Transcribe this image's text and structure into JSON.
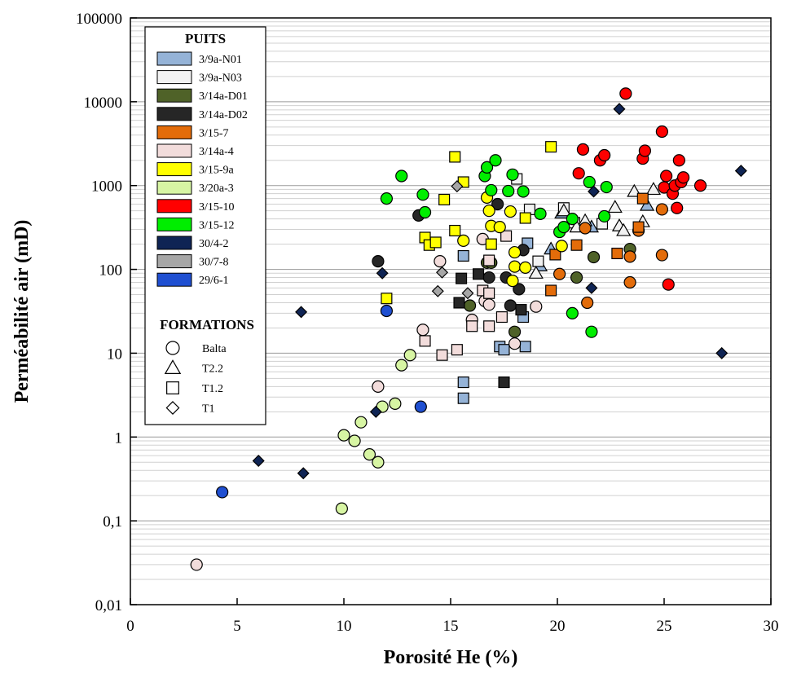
{
  "chart_data": {
    "type": "scatter",
    "xlabel": "Porosité He (%)",
    "ylabel": "Perméabilité air (mD)",
    "xlim": [
      0,
      30
    ],
    "ylim": [
      0.01,
      100000
    ],
    "y_scale": "log",
    "x_ticks": [
      "0",
      "5",
      "10",
      "15",
      "20",
      "25",
      "30"
    ],
    "x_tick_values": [
      0,
      5,
      10,
      15,
      20,
      25,
      30
    ],
    "y_ticks": [
      "0,01",
      "0,1",
      "1",
      "10",
      "100",
      "1000",
      "10000",
      "100000"
    ],
    "y_tick_values": [
      0.01,
      0.1,
      1,
      10,
      100,
      1000,
      10000,
      100000
    ],
    "grid": "horizontal minor log gridlines",
    "legend": {
      "placement": "top-left",
      "wells_title": "PUITS",
      "formations_title": "FORMATIONS",
      "wells": [
        {
          "name": "3/9a-N01",
          "color": "#95b3d7"
        },
        {
          "name": "3/9a-N03",
          "color": "#f2f2f2"
        },
        {
          "name": "3/14a-D01",
          "color": "#4f6228"
        },
        {
          "name": "3/14a-D02",
          "color": "#262626"
        },
        {
          "name": "3/15-7",
          "color": "#e36c0a"
        },
        {
          "name": "3/14a-4",
          "color": "#f2dcdb"
        },
        {
          "name": "3/15-9a",
          "color": "#ffff00"
        },
        {
          "name": "3/20a-3",
          "color": "#d7f5a3"
        },
        {
          "name": "3/15-10",
          "color": "#ff0000"
        },
        {
          "name": "3/15-12",
          "color": "#00ee00"
        },
        {
          "name": "30/4-2",
          "color": "#0f2454"
        },
        {
          "name": "30/7-8",
          "color": "#a6a6a6"
        },
        {
          "name": "29/6-1",
          "color": "#1f4fd1"
        }
      ],
      "formations": [
        {
          "name": "Balta",
          "marker": "circle"
        },
        {
          "name": "T2.2",
          "marker": "triangle"
        },
        {
          "name": "T1.2",
          "marker": "square"
        },
        {
          "name": "T1",
          "marker": "diamond"
        }
      ]
    },
    "series": [
      {
        "name": "3/9a-N01",
        "color": "#95b3d7",
        "points": [
          {
            "x": 15.6,
            "y": 145,
            "m": "square"
          },
          {
            "x": 15.6,
            "y": 4.5,
            "m": "square"
          },
          {
            "x": 15.6,
            "y": 2.9,
            "m": "square"
          },
          {
            "x": 17.3,
            "y": 12,
            "m": "square"
          },
          {
            "x": 17.5,
            "y": 11,
            "m": "square"
          },
          {
            "x": 18.5,
            "y": 12,
            "m": "square"
          },
          {
            "x": 18.4,
            "y": 27,
            "m": "square"
          },
          {
            "x": 18.6,
            "y": 205,
            "m": "square"
          },
          {
            "x": 19.2,
            "y": 110,
            "m": "triangle"
          },
          {
            "x": 19.7,
            "y": 175,
            "m": "triangle"
          },
          {
            "x": 20.2,
            "y": 470,
            "m": "triangle"
          },
          {
            "x": 21.6,
            "y": 320,
            "m": "triangle"
          },
          {
            "x": 24.2,
            "y": 580,
            "m": "triangle"
          }
        ]
      },
      {
        "name": "3/9a-N03",
        "color": "#f2f2f2",
        "points": [
          {
            "x": 18.1,
            "y": 1200,
            "m": "square"
          },
          {
            "x": 20.3,
            "y": 540,
            "m": "square"
          },
          {
            "x": 20.8,
            "y": 360,
            "m": "square"
          },
          {
            "x": 22.1,
            "y": 350,
            "m": "square"
          },
          {
            "x": 18.7,
            "y": 520,
            "m": "square"
          },
          {
            "x": 19.1,
            "y": 125,
            "m": "square"
          },
          {
            "x": 19.0,
            "y": 90,
            "m": "triangle"
          },
          {
            "x": 20.3,
            "y": 500,
            "m": "triangle"
          },
          {
            "x": 21.3,
            "y": 380,
            "m": "triangle"
          },
          {
            "x": 22.7,
            "y": 550,
            "m": "triangle"
          },
          {
            "x": 22.9,
            "y": 330,
            "m": "triangle"
          },
          {
            "x": 23.1,
            "y": 290,
            "m": "triangle"
          },
          {
            "x": 23.6,
            "y": 850,
            "m": "triangle"
          },
          {
            "x": 24.0,
            "y": 370,
            "m": "triangle"
          },
          {
            "x": 24.5,
            "y": 900,
            "m": "triangle"
          },
          {
            "x": 20.9,
            "y": 320,
            "m": "triangle"
          }
        ]
      },
      {
        "name": "3/14a-D01",
        "color": "#4f6228",
        "points": [
          {
            "x": 15.9,
            "y": 37,
            "m": "circle"
          },
          {
            "x": 16.7,
            "y": 120,
            "m": "circle"
          },
          {
            "x": 16.9,
            "y": 120,
            "m": "circle"
          },
          {
            "x": 18.0,
            "y": 18,
            "m": "circle"
          },
          {
            "x": 20.9,
            "y": 80,
            "m": "circle"
          },
          {
            "x": 21.7,
            "y": 140,
            "m": "circle"
          },
          {
            "x": 23.4,
            "y": 175,
            "m": "circle"
          }
        ]
      },
      {
        "name": "3/14a-D02",
        "color": "#262626",
        "points": [
          {
            "x": 11.6,
            "y": 125,
            "m": "circle"
          },
          {
            "x": 13.5,
            "y": 440,
            "m": "circle"
          },
          {
            "x": 16.8,
            "y": 80,
            "m": "circle"
          },
          {
            "x": 17.2,
            "y": 600,
            "m": "circle"
          },
          {
            "x": 17.6,
            "y": 80,
            "m": "circle"
          },
          {
            "x": 17.8,
            "y": 37,
            "m": "circle"
          },
          {
            "x": 18.2,
            "y": 58,
            "m": "circle"
          },
          {
            "x": 18.4,
            "y": 170,
            "m": "circle"
          },
          {
            "x": 15.4,
            "y": 40,
            "m": "square"
          },
          {
            "x": 15.5,
            "y": 78,
            "m": "square"
          },
          {
            "x": 16.3,
            "y": 88,
            "m": "square"
          },
          {
            "x": 18.3,
            "y": 33,
            "m": "square"
          },
          {
            "x": 17.5,
            "y": 4.5,
            "m": "square"
          }
        ]
      },
      {
        "name": "3/15-7",
        "color": "#e36c0a",
        "points": [
          {
            "x": 20.1,
            "y": 88,
            "m": "circle"
          },
          {
            "x": 21.4,
            "y": 40,
            "m": "circle"
          },
          {
            "x": 23.4,
            "y": 70,
            "m": "circle"
          },
          {
            "x": 23.4,
            "y": 142,
            "m": "circle"
          },
          {
            "x": 24.9,
            "y": 148,
            "m": "circle"
          },
          {
            "x": 23.8,
            "y": 290,
            "m": "circle"
          },
          {
            "x": 24.9,
            "y": 520,
            "m": "circle"
          },
          {
            "x": 21.3,
            "y": 310,
            "m": "circle"
          },
          {
            "x": 19.7,
            "y": 56,
            "m": "square"
          },
          {
            "x": 20.9,
            "y": 195,
            "m": "square"
          },
          {
            "x": 22.8,
            "y": 155,
            "m": "square"
          },
          {
            "x": 23.8,
            "y": 320,
            "m": "square"
          },
          {
            "x": 24.0,
            "y": 700,
            "m": "square"
          },
          {
            "x": 19.9,
            "y": 150,
            "m": "square"
          }
        ]
      },
      {
        "name": "3/14a-4",
        "color": "#f2dcdb",
        "points": [
          {
            "x": 3.1,
            "y": 0.03,
            "m": "circle"
          },
          {
            "x": 11.6,
            "y": 4.0,
            "m": "circle"
          },
          {
            "x": 13.7,
            "y": 19,
            "m": "circle"
          },
          {
            "x": 14.5,
            "y": 125,
            "m": "circle"
          },
          {
            "x": 16.0,
            "y": 25,
            "m": "circle"
          },
          {
            "x": 16.6,
            "y": 42,
            "m": "circle"
          },
          {
            "x": 16.8,
            "y": 38,
            "m": "circle"
          },
          {
            "x": 18.0,
            "y": 13,
            "m": "circle"
          },
          {
            "x": 19.0,
            "y": 36,
            "m": "circle"
          },
          {
            "x": 16.5,
            "y": 230,
            "m": "circle"
          },
          {
            "x": 13.8,
            "y": 14,
            "m": "square"
          },
          {
            "x": 14.6,
            "y": 9.5,
            "m": "square"
          },
          {
            "x": 15.3,
            "y": 11,
            "m": "square"
          },
          {
            "x": 16.0,
            "y": 21,
            "m": "square"
          },
          {
            "x": 16.5,
            "y": 56,
            "m": "square"
          },
          {
            "x": 16.8,
            "y": 52,
            "m": "square"
          },
          {
            "x": 16.8,
            "y": 21,
            "m": "square"
          },
          {
            "x": 17.4,
            "y": 27,
            "m": "square"
          },
          {
            "x": 17.6,
            "y": 250,
            "m": "square"
          },
          {
            "x": 16.8,
            "y": 128,
            "m": "square"
          }
        ]
      },
      {
        "name": "3/15-9a",
        "color": "#ffff00",
        "points": [
          {
            "x": 12.0,
            "y": 45,
            "m": "square"
          },
          {
            "x": 13.8,
            "y": 240,
            "m": "square"
          },
          {
            "x": 14.0,
            "y": 195,
            "m": "square"
          },
          {
            "x": 14.3,
            "y": 210,
            "m": "square"
          },
          {
            "x": 14.7,
            "y": 680,
            "m": "square"
          },
          {
            "x": 15.2,
            "y": 2200,
            "m": "square"
          },
          {
            "x": 15.2,
            "y": 290,
            "m": "square"
          },
          {
            "x": 15.6,
            "y": 1100,
            "m": "square"
          },
          {
            "x": 16.9,
            "y": 200,
            "m": "square"
          },
          {
            "x": 18.5,
            "y": 410,
            "m": "square"
          },
          {
            "x": 19.7,
            "y": 2900,
            "m": "square"
          },
          {
            "x": 15.6,
            "y": 220,
            "m": "circle"
          },
          {
            "x": 16.7,
            "y": 720,
            "m": "circle"
          },
          {
            "x": 16.8,
            "y": 500,
            "m": "circle"
          },
          {
            "x": 16.9,
            "y": 330,
            "m": "circle"
          },
          {
            "x": 17.3,
            "y": 320,
            "m": "circle"
          },
          {
            "x": 17.8,
            "y": 490,
            "m": "circle"
          },
          {
            "x": 18.0,
            "y": 160,
            "m": "circle"
          },
          {
            "x": 18.0,
            "y": 108,
            "m": "circle"
          },
          {
            "x": 18.5,
            "y": 105,
            "m": "circle"
          },
          {
            "x": 17.9,
            "y": 73,
            "m": "circle"
          },
          {
            "x": 20.2,
            "y": 190,
            "m": "circle"
          }
        ]
      },
      {
        "name": "3/20a-3",
        "color": "#d7f5a3",
        "points": [
          {
            "x": 9.9,
            "y": 0.14,
            "m": "circle"
          },
          {
            "x": 10.0,
            "y": 1.05,
            "m": "circle"
          },
          {
            "x": 10.5,
            "y": 0.9,
            "m": "circle"
          },
          {
            "x": 10.8,
            "y": 1.5,
            "m": "circle"
          },
          {
            "x": 11.2,
            "y": 0.62,
            "m": "circle"
          },
          {
            "x": 11.6,
            "y": 0.5,
            "m": "circle"
          },
          {
            "x": 11.8,
            "y": 2.3,
            "m": "circle"
          },
          {
            "x": 12.4,
            "y": 2.5,
            "m": "circle"
          },
          {
            "x": 12.7,
            "y": 7.2,
            "m": "circle"
          },
          {
            "x": 13.1,
            "y": 9.5,
            "m": "circle"
          }
        ]
      },
      {
        "name": "3/15-10",
        "color": "#ff0000",
        "points": [
          {
            "x": 21.0,
            "y": 1400,
            "m": "circle"
          },
          {
            "x": 21.2,
            "y": 2700,
            "m": "circle"
          },
          {
            "x": 22.0,
            "y": 2000,
            "m": "circle"
          },
          {
            "x": 22.2,
            "y": 2300,
            "m": "circle"
          },
          {
            "x": 23.2,
            "y": 12500,
            "m": "circle"
          },
          {
            "x": 24.0,
            "y": 2100,
            "m": "circle"
          },
          {
            "x": 24.1,
            "y": 2600,
            "m": "circle"
          },
          {
            "x": 24.9,
            "y": 4400,
            "m": "circle"
          },
          {
            "x": 25.0,
            "y": 950,
            "m": "circle"
          },
          {
            "x": 25.1,
            "y": 1300,
            "m": "circle"
          },
          {
            "x": 25.4,
            "y": 800,
            "m": "circle"
          },
          {
            "x": 25.5,
            "y": 1000,
            "m": "circle"
          },
          {
            "x": 25.7,
            "y": 2000,
            "m": "circle"
          },
          {
            "x": 25.8,
            "y": 1100,
            "m": "circle"
          },
          {
            "x": 25.9,
            "y": 1250,
            "m": "circle"
          },
          {
            "x": 26.7,
            "y": 1000,
            "m": "circle"
          },
          {
            "x": 25.6,
            "y": 540,
            "m": "circle"
          },
          {
            "x": 25.2,
            "y": 66,
            "m": "circle"
          }
        ]
      },
      {
        "name": "3/15-12",
        "color": "#00ee00",
        "points": [
          {
            "x": 12.0,
            "y": 700,
            "m": "circle"
          },
          {
            "x": 12.7,
            "y": 1300,
            "m": "circle"
          },
          {
            "x": 13.7,
            "y": 780,
            "m": "circle"
          },
          {
            "x": 13.8,
            "y": 480,
            "m": "circle"
          },
          {
            "x": 16.6,
            "y": 1300,
            "m": "circle"
          },
          {
            "x": 16.7,
            "y": 1650,
            "m": "circle"
          },
          {
            "x": 16.9,
            "y": 880,
            "m": "circle"
          },
          {
            "x": 17.1,
            "y": 2000,
            "m": "circle"
          },
          {
            "x": 17.7,
            "y": 860,
            "m": "circle"
          },
          {
            "x": 17.9,
            "y": 1350,
            "m": "circle"
          },
          {
            "x": 18.4,
            "y": 850,
            "m": "circle"
          },
          {
            "x": 19.2,
            "y": 460,
            "m": "circle"
          },
          {
            "x": 20.1,
            "y": 280,
            "m": "circle"
          },
          {
            "x": 20.3,
            "y": 320,
            "m": "circle"
          },
          {
            "x": 20.7,
            "y": 400,
            "m": "circle"
          },
          {
            "x": 20.7,
            "y": 30,
            "m": "circle"
          },
          {
            "x": 21.5,
            "y": 1100,
            "m": "circle"
          },
          {
            "x": 22.2,
            "y": 430,
            "m": "circle"
          },
          {
            "x": 22.3,
            "y": 960,
            "m": "circle"
          },
          {
            "x": 21.6,
            "y": 18,
            "m": "circle"
          }
        ]
      },
      {
        "name": "30/4-2",
        "color": "#0f2454",
        "points": [
          {
            "x": 6.0,
            "y": 0.52,
            "m": "diamond"
          },
          {
            "x": 8.0,
            "y": 31,
            "m": "diamond"
          },
          {
            "x": 8.1,
            "y": 0.37,
            "m": "diamond"
          },
          {
            "x": 11.5,
            "y": 2.0,
            "m": "diamond"
          },
          {
            "x": 11.8,
            "y": 90,
            "m": "diamond"
          },
          {
            "x": 21.7,
            "y": 850,
            "m": "diamond"
          },
          {
            "x": 21.6,
            "y": 60,
            "m": "diamond"
          },
          {
            "x": 22.9,
            "y": 8200,
            "m": "diamond"
          },
          {
            "x": 27.7,
            "y": 10,
            "m": "diamond"
          },
          {
            "x": 28.6,
            "y": 1500,
            "m": "diamond"
          }
        ]
      },
      {
        "name": "30/7-8",
        "color": "#a6a6a6",
        "points": [
          {
            "x": 14.4,
            "y": 55,
            "m": "diamond"
          },
          {
            "x": 14.6,
            "y": 92,
            "m": "diamond"
          },
          {
            "x": 15.3,
            "y": 980,
            "m": "diamond"
          },
          {
            "x": 15.8,
            "y": 52,
            "m": "diamond"
          }
        ]
      },
      {
        "name": "29/6-1",
        "color": "#1f4fd1",
        "points": [
          {
            "x": 4.3,
            "y": 0.22,
            "m": "circle"
          },
          {
            "x": 12.0,
            "y": 32,
            "m": "circle"
          },
          {
            "x": 13.6,
            "y": 2.3,
            "m": "circle"
          }
        ]
      }
    ]
  }
}
